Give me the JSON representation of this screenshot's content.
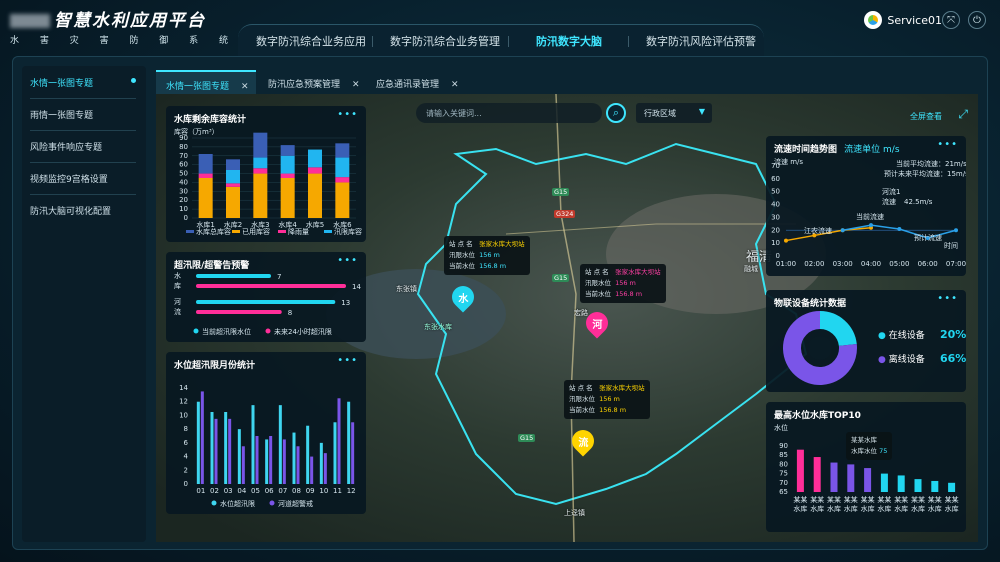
{
  "header": {
    "title": "智慧水利应用平台",
    "subtitle": "水 害 灾 害 防 御 系 统",
    "nav": [
      "数字防汛综合业务应用",
      "数字防汛综合业务管理",
      "防汛数字大脑",
      "数字防汛风险评估预警"
    ],
    "active_nav": 2,
    "user": "Service01"
  },
  "sidebar": {
    "items": [
      "水情一张图专题",
      "雨情一张图专题",
      "风险事件响应专题",
      "视频监控9宫格设置",
      "防汛大脑可视化配置"
    ]
  },
  "tabs": [
    {
      "label": "水情一张图专题",
      "close": "✕"
    },
    {
      "label": "防汛应急预案管理",
      "close": "✕"
    },
    {
      "label": "应急通讯录管理",
      "close": "✕"
    }
  ],
  "map": {
    "search_placeholder": "请输入关键词...",
    "region": "行政区域",
    "fullscreen": "全屏查看",
    "place_labels": [
      "东张镇",
      "东张水库",
      "宏路",
      "福清",
      "融城",
      "G15",
      "G324",
      "上迳镇",
      "河",
      "溪"
    ],
    "popups": [
      {
        "rows": [
          [
            "站 点 名",
            "张家水库大坝站"
          ],
          [
            "汛限水位",
            "156 m"
          ],
          [
            "当前水位",
            "156.8 m"
          ]
        ]
      },
      {
        "rows": [
          [
            "站 点 名",
            "张家水库大坝站"
          ],
          [
            "汛限水位",
            "156 m"
          ],
          [
            "当前水位",
            "156.8 m"
          ]
        ]
      },
      {
        "rows": [
          [
            "站 点 名",
            "张家水库大坝站"
          ],
          [
            "汛限水位",
            "156 m"
          ],
          [
            "当前水位",
            "156.8 m"
          ]
        ]
      }
    ],
    "pins": [
      "水",
      "河",
      "流"
    ]
  },
  "panels": {
    "p1": {
      "title": "水库剩余库容统计",
      "more": "•••"
    },
    "p2": {
      "title": "超汛限/超警告预警",
      "more": "•••"
    },
    "p3": {
      "title": "水位超汛限月份统计",
      "more": "•••"
    },
    "p4": {
      "title": "流速时间趋势图",
      "unit": "流速单位 m/s",
      "more": "•••",
      "legend_lines": [
        "当前平均流速：21m/s",
        "预计未来平均流速：15m/s"
      ],
      "tooltip": [
        "河流1",
        "流速",
        "42.5m/s"
      ],
      "point_labels": [
        "江农流速",
        "当前流速",
        "预计流速"
      ]
    },
    "p5": {
      "title": "物联设备统计数据",
      "more": "•••",
      "online_label": "在线设备",
      "online_value": "20%",
      "offline_label": "离线设备",
      "offline_value": "66%"
    },
    "p6": {
      "title": "最高水位水库TOP10",
      "more": "•••",
      "tooltip": [
        "某某水库",
        "水库水位",
        "75"
      ]
    }
  },
  "chart_data": [
    {
      "type": "bar",
      "title": "水库剩余库容统计",
      "ylabel": "库容（万m³）",
      "ylim": [
        0,
        90
      ],
      "yticks": [
        0,
        10,
        20,
        30,
        40,
        50,
        60,
        70,
        80,
        90
      ],
      "categories": [
        "水库1",
        "水库2",
        "水库3",
        "水库4",
        "水库5",
        "水库6"
      ],
      "series": [
        {
          "name": "水库总库容",
          "color": "#3a5fb5",
          "values": [
            22,
            12,
            28,
            12,
            0,
            16
          ]
        },
        {
          "name": "已用库容",
          "color": "#f6a800",
          "values": [
            45,
            35,
            50,
            45,
            50,
            40
          ]
        },
        {
          "name": "降雨量",
          "color": "#ff2e98",
          "values": [
            5,
            4,
            6,
            5,
            7,
            6
          ]
        },
        {
          "name": "汛限库容",
          "color": "#21b5f0",
          "values": [
            0,
            15,
            12,
            20,
            20,
            22
          ]
        }
      ]
    },
    {
      "type": "bar",
      "title": "超汛限/超警告预警",
      "categories": [
        "水库",
        "河流"
      ],
      "xlim": [
        0,
        14
      ],
      "series": [
        {
          "name": "当前超汛限水位",
          "color": "#21d6f0",
          "values": [
            7,
            13
          ]
        },
        {
          "name": "未来24小时超汛限",
          "color": "#ff2e98",
          "values": [
            14,
            8
          ]
        }
      ]
    },
    {
      "type": "bar",
      "title": "水位超汛限月份统计",
      "ylim": [
        0,
        14
      ],
      "yticks": [
        0,
        2,
        4,
        6,
        8,
        10,
        12,
        14
      ],
      "categories": [
        "01",
        "02",
        "03",
        "04",
        "05",
        "06",
        "07",
        "08",
        "09",
        "10",
        "11",
        "12"
      ],
      "series": [
        {
          "name": "水位超汛限",
          "color": "#3fd6f0",
          "values": [
            12,
            10.5,
            10.5,
            8,
            11.5,
            6.5,
            11.5,
            7.5,
            8.5,
            6,
            9,
            12
          ]
        },
        {
          "name": "河道超警戒",
          "color": "#7a55e8",
          "values": [
            13.5,
            9.5,
            9.5,
            5.5,
            7,
            7,
            6.5,
            5.5,
            4,
            4.5,
            12.5,
            9
          ]
        }
      ]
    },
    {
      "type": "line",
      "title": "流速时间趋势图",
      "ylabel": "流速 m/s",
      "xlabel": "时间",
      "ylim": [
        0,
        70
      ],
      "yticks": [
        0,
        10,
        20,
        30,
        40,
        50,
        60,
        70
      ],
      "categories": [
        "01:00",
        "02:00",
        "03:00",
        "04:00",
        "05:00",
        "06:00",
        "07:00"
      ],
      "series": [
        {
          "name": "江农流速",
          "color": "#f6a800",
          "values": [
            12,
            16,
            20,
            22,
            null,
            null,
            null
          ]
        },
        {
          "name": "当前流速",
          "color": "#2aa0e8",
          "values": [
            null,
            null,
            20,
            24,
            21,
            14,
            20
          ]
        }
      ],
      "threshold": 20
    },
    {
      "type": "pie",
      "title": "物联设备统计数据",
      "series": [
        {
          "name": "在线设备",
          "value": 20,
          "color": "#21d6f0"
        },
        {
          "name": "离线设备",
          "value": 66,
          "color": "#7a55e8"
        }
      ]
    },
    {
      "type": "bar",
      "title": "最高水位水库TOP10",
      "ylabel": "水位",
      "ylim": [
        65,
        90
      ],
      "yticks": [
        65,
        70,
        75,
        80,
        85,
        90
      ],
      "categories": [
        "某某水库",
        "某某水库",
        "某某水库",
        "某某水库",
        "某某水库",
        "某某水库",
        "某某水库",
        "某某水库",
        "某某水库",
        "某某水库"
      ],
      "values": [
        88,
        84,
        81,
        80,
        78,
        75,
        74,
        72,
        71,
        70
      ],
      "colors": [
        "#ff2e98",
        "#ff2e98",
        "#7a55e8",
        "#7a55e8",
        "#7a55e8",
        "#21d6f0",
        "#21d6f0",
        "#21d6f0",
        "#21d6f0",
        "#21d6f0"
      ]
    }
  ]
}
